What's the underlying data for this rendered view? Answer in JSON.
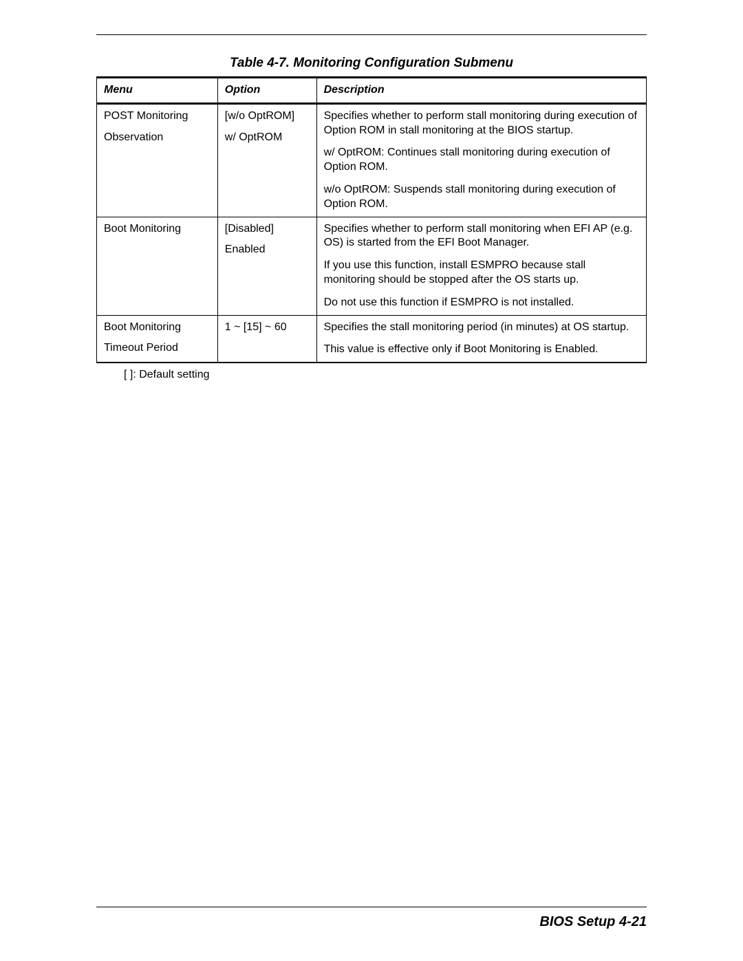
{
  "title": "Table 4-7.  Monitoring Configuration Submenu",
  "headers": {
    "menu": "Menu",
    "option": "Option",
    "description": "Description"
  },
  "rows": [
    {
      "menu": [
        "POST Monitoring",
        "Observation"
      ],
      "option": [
        "[w/o OptROM]",
        "w/ OptROM"
      ],
      "description": [
        "Specifies whether to perform stall monitoring during execution of Option ROM in stall monitoring at the BIOS startup.",
        "w/ OptROM: Continues stall monitoring during execution of Option ROM.",
        "w/o OptROM: Suspends stall monitoring during execution of Option ROM."
      ]
    },
    {
      "menu": [
        "Boot Monitoring"
      ],
      "option": [
        "[Disabled]",
        "Enabled"
      ],
      "description": [
        "Specifies whether to perform stall monitoring when EFI AP (e.g. OS) is started from the EFI Boot Manager.",
        "If you use this function, install ESMPRO because stall monitoring should be stopped after the OS starts up.",
        "Do not use this function if ESMPRO is not installed."
      ]
    },
    {
      "menu": [
        "Boot Monitoring",
        "Timeout Period"
      ],
      "option": [
        "1 ~ [15] ~ 60"
      ],
      "description": [
        "Specifies the stall monitoring period (in minutes) at OS startup.",
        "This value is effective only if Boot Monitoring is Enabled."
      ]
    }
  ],
  "legend": "[      ]: Default setting",
  "footer": "BIOS Setup   4-21"
}
